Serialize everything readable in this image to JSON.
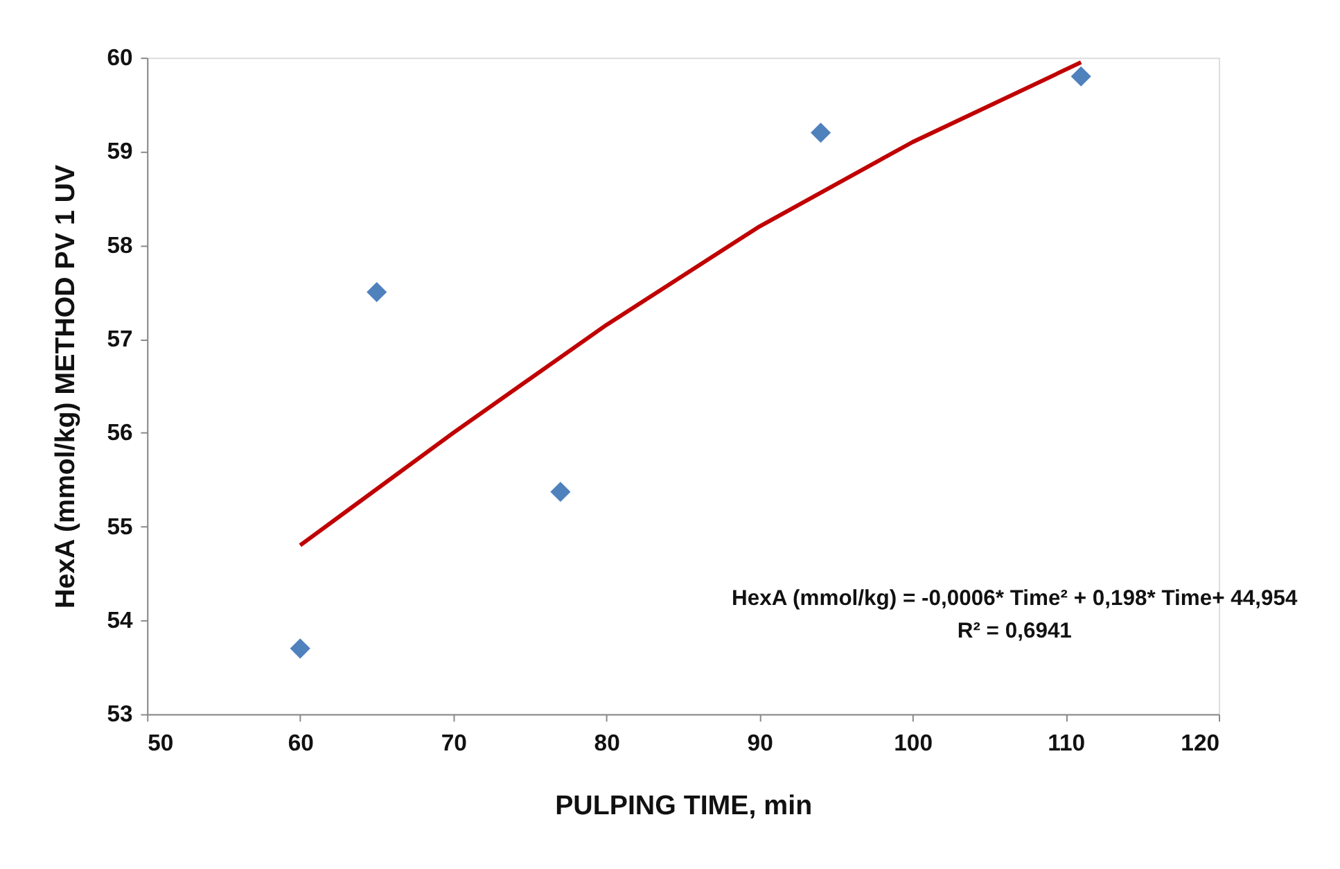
{
  "chart_data": {
    "type": "scatter",
    "xlabel": "PULPING TIME, min",
    "ylabel": "HexA (mmol/kg) METHOD  PV 1 UV",
    "x": [
      60,
      65,
      77,
      94,
      111
    ],
    "series": [
      {
        "type": "scatter",
        "color": "#4f81bd",
        "marker": "diamond",
        "values": [
          53.7,
          57.5,
          55.37,
          59.2,
          59.8
        ]
      },
      {
        "type": "line",
        "color": "#c00000",
        "marker": "none",
        "line_style": "solid",
        "x": [
          60,
          70,
          80,
          90,
          100,
          111
        ],
        "values": [
          54.8,
          56.0,
          57.15,
          58.2,
          59.1,
          59.95
        ]
      }
    ],
    "xlim": [
      50,
      120
    ],
    "xticks": [
      50,
      60,
      70,
      80,
      90,
      100,
      110,
      120
    ],
    "ylim": [
      53,
      60
    ],
    "yticks": [
      53,
      54,
      55,
      56,
      57,
      58,
      59,
      60
    ],
    "grid": false,
    "annotations": [
      "HexA (mmol/kg) = -0,0006* Time² + 0,198* Time+ 44,954",
      "R² = 0,6941"
    ]
  }
}
